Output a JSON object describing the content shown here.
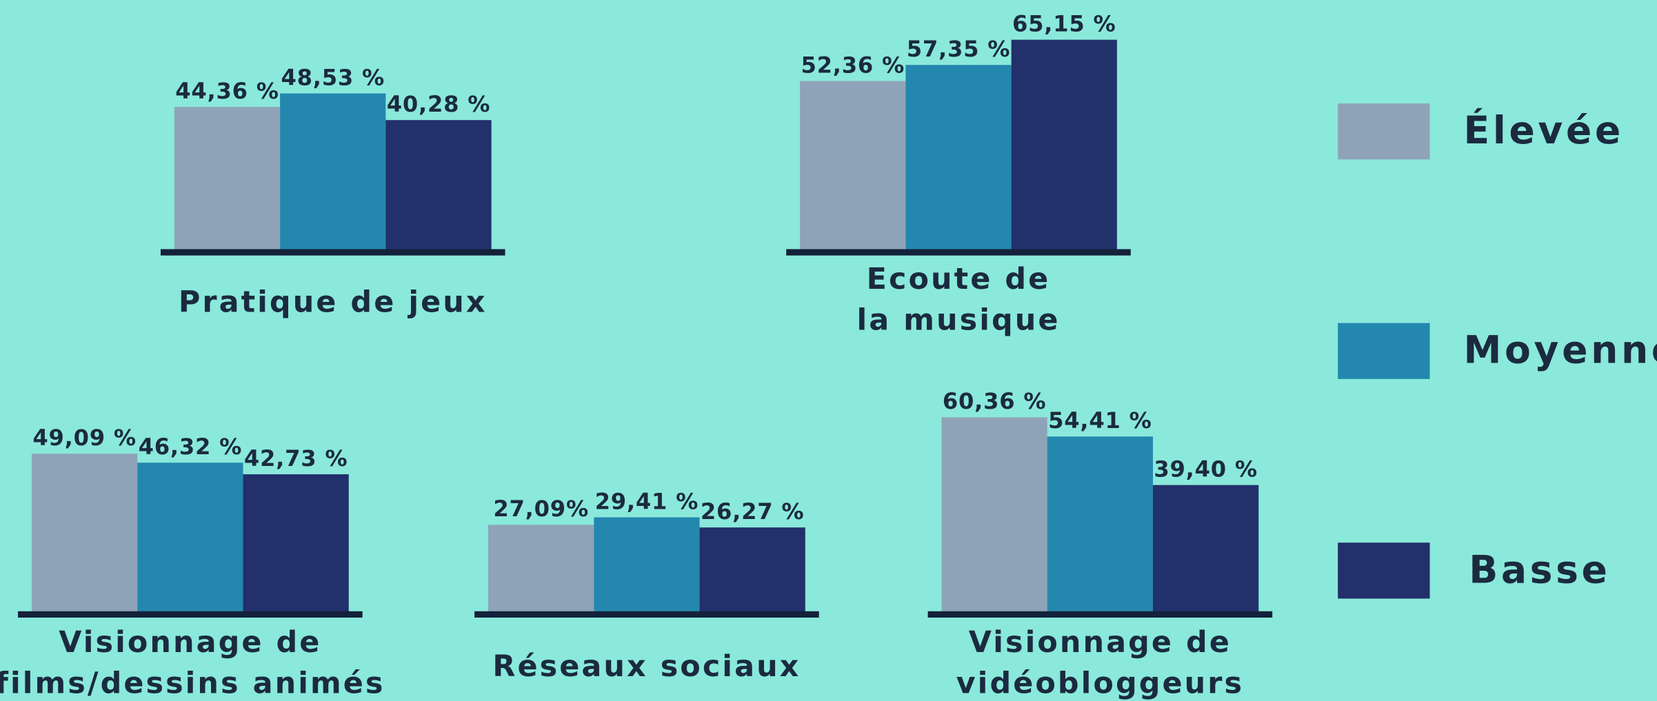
{
  "legend": [
    {
      "name": "Élevée",
      "color": "#8fa3b8"
    },
    {
      "name": "Moyenne",
      "color": "#2487ae"
    },
    {
      "name": "Basse",
      "color": "#22306b"
    }
  ],
  "chart_data": [
    {
      "type": "bar",
      "title": [
        "Pratique de jeux"
      ],
      "values": [
        44.36,
        48.53,
        40.28
      ],
      "value_labels": [
        "44,36 %",
        "48,53 %",
        "40,28 %"
      ]
    },
    {
      "type": "bar",
      "title": [
        "Ecoute de",
        "la musique"
      ],
      "values": [
        52.36,
        57.35,
        65.15
      ],
      "value_labels": [
        "52,36 %",
        "57,35 %",
        "65,15 %"
      ]
    },
    {
      "type": "bar",
      "title": [
        "Visionnage de",
        "films/dessins animés"
      ],
      "values": [
        49.09,
        46.32,
        42.73
      ],
      "value_labels": [
        "49,09 %",
        "46,32 %",
        "42,73 %"
      ]
    },
    {
      "type": "bar",
      "title": [
        "Réseaux sociaux"
      ],
      "values": [
        27.09,
        29.41,
        26.27
      ],
      "value_labels": [
        "27,09%",
        "29,41 %",
        "26,27 %"
      ]
    },
    {
      "type": "bar",
      "title": [
        "Visionnage de",
        "vidéobloggeurs"
      ],
      "values": [
        60.36,
        54.41,
        39.4
      ],
      "value_labels": [
        "60,36 %",
        "54,41 %",
        "39,40 %"
      ]
    }
  ]
}
